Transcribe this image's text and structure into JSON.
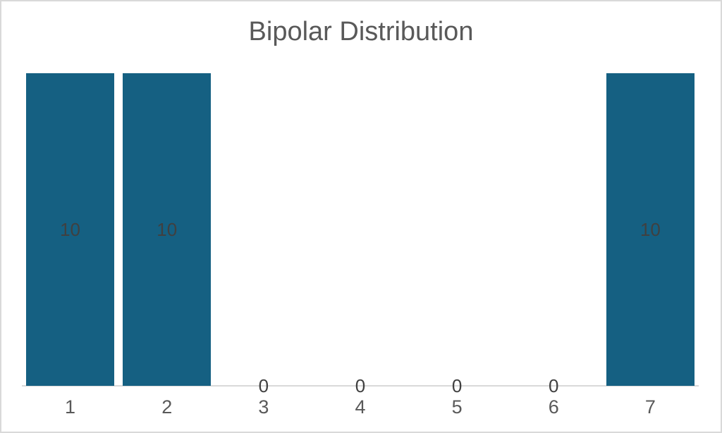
{
  "chart_data": {
    "type": "bar",
    "title": "Bipolar Distribution",
    "categories": [
      "1",
      "2",
      "3",
      "4",
      "5",
      "6",
      "7"
    ],
    "series": [
      {
        "name": "values",
        "values": [
          10,
          10,
          0,
          0,
          0,
          0,
          10
        ]
      }
    ],
    "data_labels": [
      "10",
      "10",
      "0",
      "0",
      "0",
      "0",
      "10"
    ],
    "ylim": [
      0,
      10
    ],
    "xlabel": "",
    "ylabel": "",
    "grid": false,
    "legend": "none",
    "colors": {
      "bar_fill": "#156082",
      "title_text": "#595959",
      "axis_tick_text": "#595959",
      "data_label_text": "#404040",
      "axis_line": "#d9d9d9",
      "frame_border": "#d9d9d9",
      "background": "#ffffff"
    }
  }
}
